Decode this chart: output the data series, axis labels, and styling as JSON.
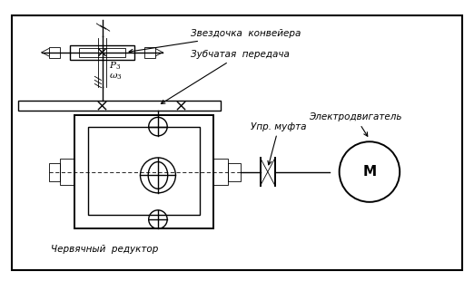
{
  "bg_color": "#ffffff",
  "line_color": "#000000",
  "labels": {
    "zvezd": "Звездочка  конвейера",
    "zub": "Зубчатая  передача",
    "upr": "Упр. муфта",
    "elektro": "Электродвигатель",
    "cherv": "Червячный  редуктор",
    "p3": "$P_3$",
    "w3": "$\\omega_3$",
    "M": "М"
  },
  "figsize": [
    5.22,
    3.1
  ],
  "dpi": 100
}
